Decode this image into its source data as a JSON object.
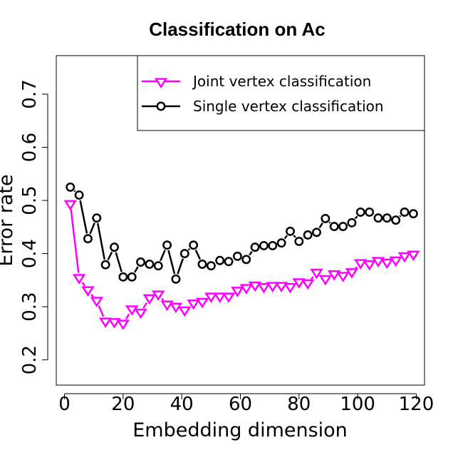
{
  "chart_data": {
    "type": "line",
    "title": "Classification on Ac",
    "xlabel": "Embedding dimension",
    "ylabel": "Error rate",
    "xlim": [
      -2.8,
      122.8
    ],
    "ylim": [
      0.1525,
      0.7725
    ],
    "xticks": [
      0,
      20,
      40,
      60,
      80,
      100,
      120
    ],
    "yticks": [
      0.2,
      0.3,
      0.4,
      0.5,
      0.6,
      0.7
    ],
    "legend_position": "top-right",
    "grid": false,
    "x": [
      2,
      5,
      8,
      11,
      14,
      17,
      20,
      23,
      26,
      29,
      32,
      35,
      38,
      41,
      44,
      47,
      50,
      53,
      56,
      59,
      62,
      65,
      68,
      71,
      74,
      77,
      80,
      83,
      86,
      89,
      92,
      95,
      98,
      101,
      104,
      107,
      110,
      113,
      116,
      119
    ],
    "series": [
      {
        "name": "Joint vertex classification",
        "color": "#ff00ff",
        "marker": "triangle-down",
        "values": [
          0.493,
          0.354,
          0.331,
          0.311,
          0.272,
          0.271,
          0.268,
          0.295,
          0.289,
          0.316,
          0.323,
          0.304,
          0.3,
          0.293,
          0.306,
          0.309,
          0.319,
          0.319,
          0.319,
          0.33,
          0.335,
          0.34,
          0.337,
          0.339,
          0.339,
          0.337,
          0.346,
          0.344,
          0.364,
          0.352,
          0.361,
          0.358,
          0.365,
          0.382,
          0.38,
          0.386,
          0.383,
          0.387,
          0.395,
          0.398
        ]
      },
      {
        "name": "Single vertex classification",
        "color": "#000000",
        "marker": "circle",
        "values": [
          0.525,
          0.51,
          0.428,
          0.467,
          0.379,
          0.412,
          0.356,
          0.356,
          0.384,
          0.38,
          0.377,
          0.416,
          0.352,
          0.4,
          0.416,
          0.38,
          0.377,
          0.387,
          0.385,
          0.395,
          0.389,
          0.412,
          0.415,
          0.415,
          0.42,
          0.442,
          0.423,
          0.435,
          0.44,
          0.466,
          0.451,
          0.451,
          0.458,
          0.478,
          0.478,
          0.467,
          0.467,
          0.463,
          0.478,
          0.475
        ]
      }
    ]
  }
}
